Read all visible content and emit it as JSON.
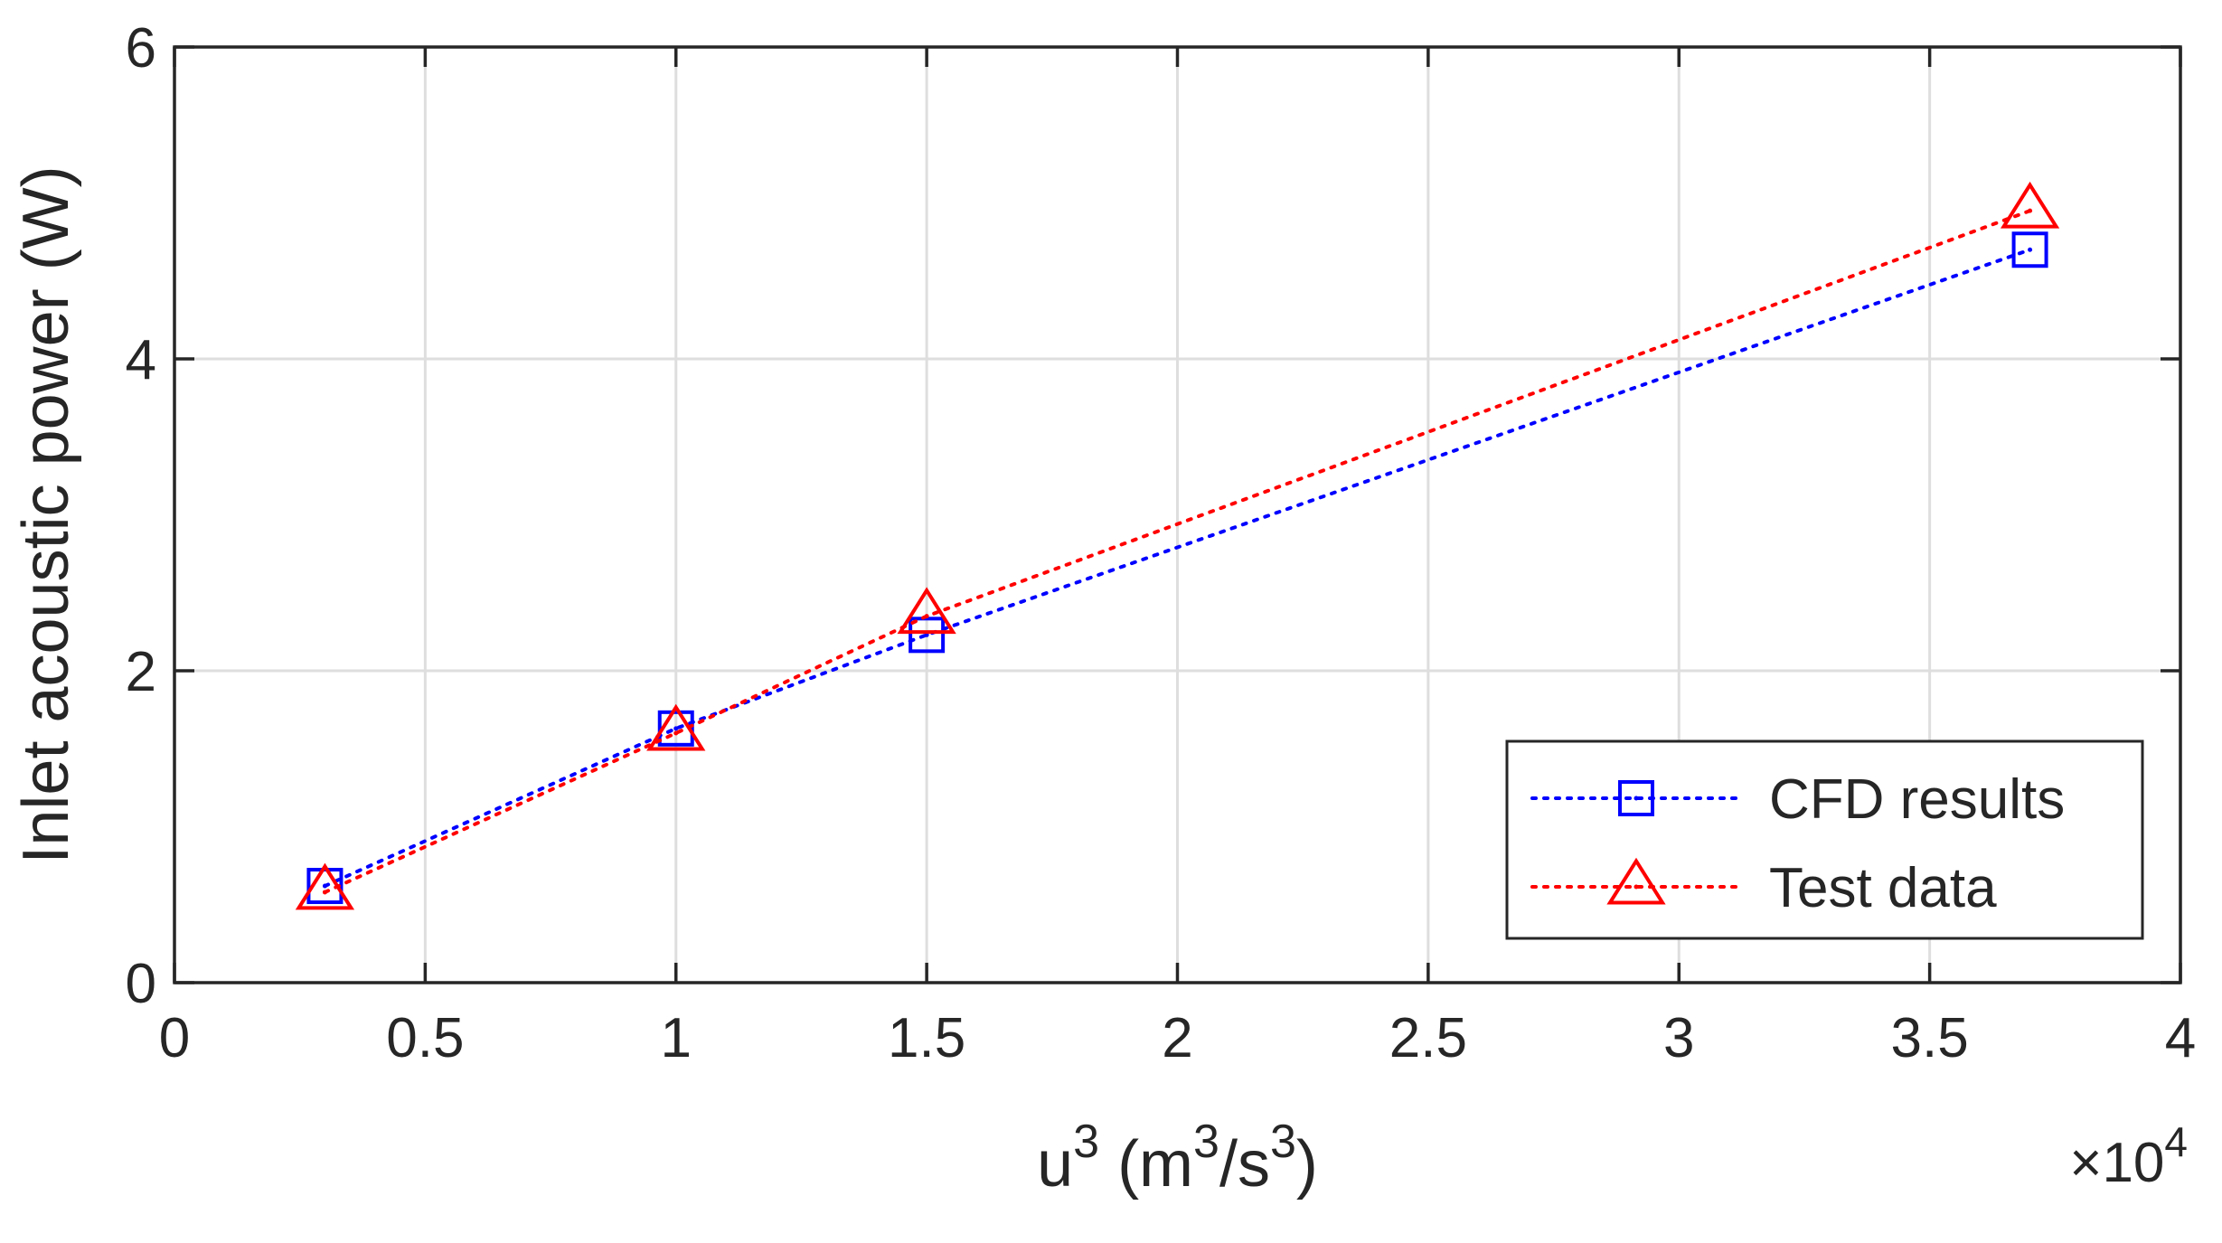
{
  "chart_data": {
    "type": "line",
    "xlabel": {
      "base": "u",
      "sup1": "3",
      "mid": " (m",
      "sup2": "3",
      "slash": "/s",
      "sup3": "3",
      "close": ")"
    },
    "ylabel": "Inlet acoustic power (W)",
    "x_exponent": {
      "times": "×",
      "base": "10",
      "power": "4"
    },
    "xlim": [
      0,
      40000
    ],
    "ylim": [
      0,
      6
    ],
    "x_ticks": [
      0,
      5000,
      10000,
      15000,
      20000,
      25000,
      30000,
      35000,
      40000
    ],
    "x_tick_labels": [
      "0",
      "0.5",
      "1",
      "1.5",
      "2",
      "2.5",
      "3",
      "3.5",
      "4"
    ],
    "y_ticks": [
      0,
      2,
      4,
      6
    ],
    "y_tick_labels": [
      "0",
      "2",
      "4",
      "6"
    ],
    "grid": true,
    "legend_position": "bottom-right",
    "series": [
      {
        "name": "CFD results",
        "marker": "square",
        "color": "#0000ff",
        "x": [
          3000,
          10000,
          15000,
          37000
        ],
        "y": [
          0.62,
          1.63,
          2.23,
          4.7
        ]
      },
      {
        "name": "Test data",
        "marker": "triangle",
        "color": "#ff0000",
        "x": [
          3000,
          10000,
          15000,
          37000
        ],
        "y": [
          0.58,
          1.6,
          2.35,
          4.95
        ]
      }
    ]
  }
}
